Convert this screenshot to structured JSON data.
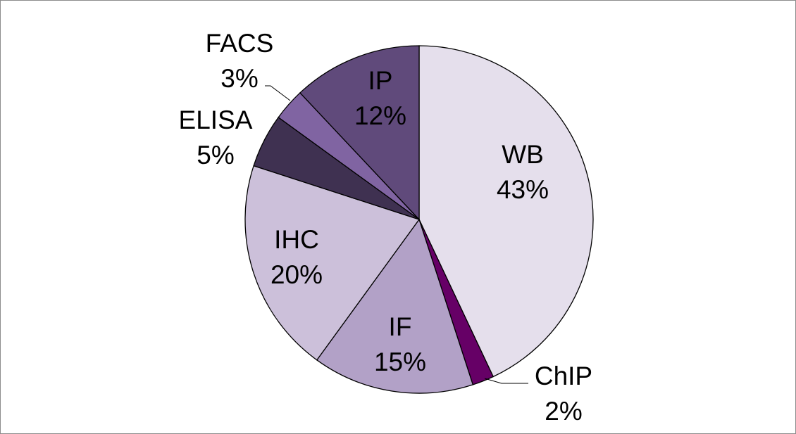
{
  "chart_data": {
    "type": "pie",
    "title": "",
    "slices": [
      {
        "label": "WB",
        "value": 43,
        "percent_label": "43%",
        "color": "#e5dfec"
      },
      {
        "label": "ChIP",
        "value": 2,
        "percent_label": "2%",
        "color": "#660066"
      },
      {
        "label": "IF",
        "value": 15,
        "percent_label": "15%",
        "color": "#b2a1c7"
      },
      {
        "label": "IHC",
        "value": 20,
        "percent_label": "20%",
        "color": "#ccc0da"
      },
      {
        "label": "ELISA",
        "value": 5,
        "percent_label": "5%",
        "color": "#3f3151"
      },
      {
        "label": "FACS",
        "value": 3,
        "percent_label": "3%",
        "color": "#8064a2"
      },
      {
        "label": "IP",
        "value": 12,
        "percent_label": "12%",
        "color": "#604a7b"
      }
    ],
    "start_angle": "12 o'clock",
    "direction": "clockwise",
    "legend": "none",
    "data_labels": "category name and percentage"
  }
}
